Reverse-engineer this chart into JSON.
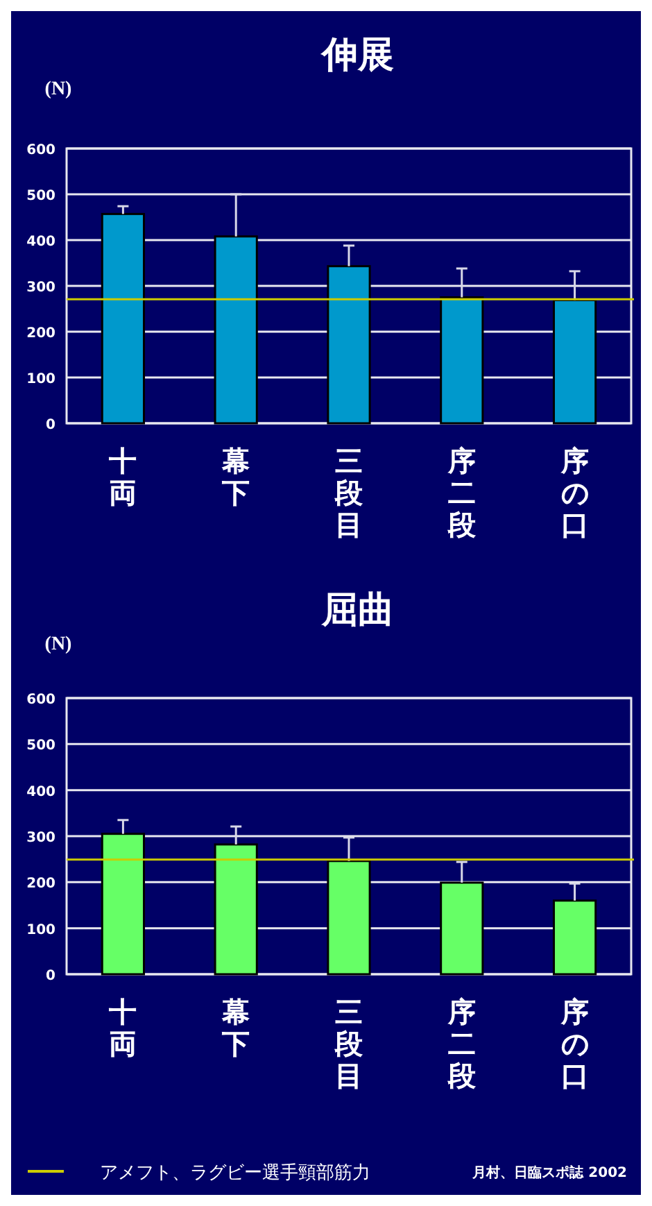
{
  "chart_data": [
    {
      "type": "bar",
      "title": "伸展",
      "ylabel": "(N)",
      "categories": [
        "十両",
        "幕下",
        "三段目",
        "序二段",
        "序の口"
      ],
      "values": [
        457,
        408,
        343,
        275,
        269
      ],
      "color": "#0099cc",
      "errors": [
        [
          457,
          474
        ],
        [
          408,
          500
        ],
        [
          343,
          388
        ],
        [
          275,
          338
        ],
        [
          269,
          332
        ]
      ],
      "ylim": [
        0,
        600
      ],
      "yticks": [
        0,
        100,
        200,
        300,
        400,
        500,
        600
      ],
      "grid": "y",
      "ref_lines": [
        {
          "axis": "y",
          "value": 271,
          "color": "#cccc00"
        }
      ]
    },
    {
      "type": "bar",
      "title": "屈曲",
      "ylabel": "(N)",
      "categories": [
        "十両",
        "幕下",
        "三段目",
        "序二段",
        "序の口"
      ],
      "values": [
        305,
        282,
        246,
        199,
        160
      ],
      "color": "#66ff66",
      "errors": [
        [
          305,
          335
        ],
        [
          282,
          321
        ],
        [
          246,
          297
        ],
        [
          199,
          244
        ],
        [
          160,
          197
        ]
      ],
      "ylim": [
        0,
        600
      ],
      "yticks": [
        0,
        100,
        200,
        300,
        400,
        500,
        600
      ],
      "grid": "y",
      "ref_lines": [
        {
          "axis": "y",
          "value": 249,
          "color": "#cccc00",
          "label": "アメフト、ラグビー選手頸部筋力"
        }
      ],
      "annotations": [
        "月村、日臨スポ誌 2002"
      ]
    }
  ]
}
